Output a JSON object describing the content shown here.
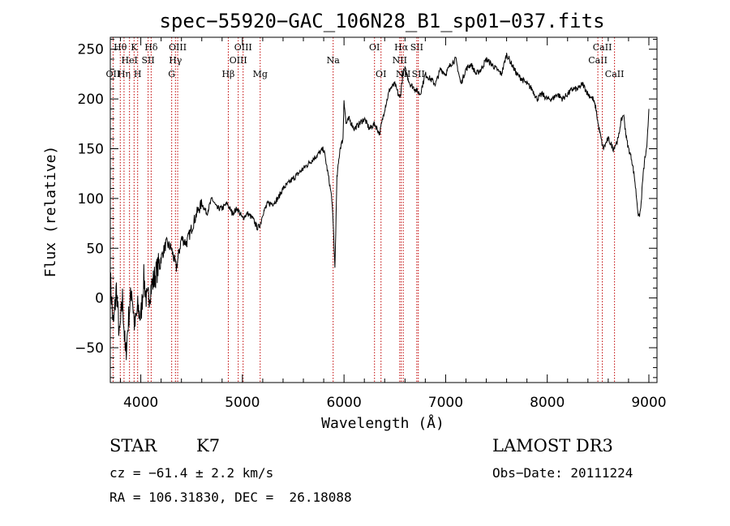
{
  "chart_data": {
    "type": "line",
    "title": "spec−55920−GAC_106N28_B1_sp01−037.fits",
    "xlabel": "Wavelength (Å)",
    "ylabel": "Flux (relative)",
    "xlim": [
      3700,
      9080
    ],
    "ylim": [
      -85,
      262
    ],
    "xticks": [
      4000,
      5000,
      6000,
      7000,
      8000,
      9000
    ],
    "yticks": [
      -50,
      0,
      50,
      100,
      150,
      200,
      250
    ],
    "grid": false,
    "series": [
      {
        "color": "#000000",
        "x": [
          3700,
          3730,
          3760,
          3790,
          3820,
          3850,
          3880,
          3910,
          3940,
          3970,
          4000,
          4030,
          4060,
          4100,
          4150,
          4200,
          4250,
          4300,
          4350,
          4400,
          4450,
          4500,
          4550,
          4600,
          4650,
          4700,
          4750,
          4800,
          4850,
          4900,
          4950,
          5000,
          5050,
          5100,
          5150,
          5180,
          5200,
          5250,
          5300,
          5350,
          5400,
          5450,
          5500,
          5550,
          5600,
          5650,
          5700,
          5750,
          5800,
          5850,
          5880,
          5895,
          5910,
          5930,
          5960,
          5990,
          6000,
          6020,
          6050,
          6100,
          6150,
          6200,
          6250,
          6300,
          6350,
          6400,
          6450,
          6500,
          6550,
          6580,
          6600,
          6650,
          6700,
          6750,
          6800,
          6850,
          6900,
          6950,
          7000,
          7050,
          7100,
          7150,
          7200,
          7250,
          7300,
          7350,
          7400,
          7450,
          7500,
          7550,
          7600,
          7650,
          7700,
          7750,
          7800,
          7850,
          7900,
          7950,
          8000,
          8050,
          8100,
          8150,
          8200,
          8250,
          8300,
          8350,
          8400,
          8450,
          8480,
          8500,
          8550,
          8600,
          8650,
          8700,
          8720,
          8750,
          8780,
          8800,
          8830,
          8860,
          8880,
          8900,
          8920,
          8940,
          8960,
          8980,
          9000
        ],
        "y": [
          20,
          -30,
          10,
          -40,
          0,
          -60,
          -20,
          10,
          -30,
          -10,
          -20,
          20,
          -5,
          10,
          25,
          40,
          55,
          50,
          30,
          60,
          55,
          70,
          85,
          95,
          85,
          100,
          90,
          90,
          95,
          85,
          90,
          80,
          85,
          80,
          70,
          75,
          85,
          95,
          95,
          100,
          110,
          115,
          120,
          125,
          130,
          135,
          140,
          145,
          150,
          120,
          100,
          70,
          30,
          120,
          150,
          160,
          200,
          175,
          180,
          170,
          175,
          180,
          170,
          175,
          165,
          190,
          210,
          215,
          200,
          225,
          230,
          215,
          210,
          205,
          225,
          220,
          215,
          230,
          225,
          235,
          240,
          215,
          230,
          235,
          225,
          230,
          240,
          235,
          230,
          225,
          245,
          235,
          225,
          220,
          215,
          210,
          200,
          205,
          200,
          200,
          205,
          200,
          205,
          210,
          210,
          215,
          205,
          200,
          190,
          175,
          150,
          160,
          150,
          160,
          175,
          185,
          160,
          150,
          140,
          120,
          100,
          80,
          90,
          120,
          140,
          150,
          190
        ]
      }
    ],
    "lines": [
      {
        "x": 3727,
        "labels": [
          "OII"
        ],
        "row": 3
      },
      {
        "x": 3798,
        "labels": [
          "Hθ"
        ],
        "row": 1
      },
      {
        "x": 3835,
        "labels": [
          "Hη"
        ],
        "row": 3
      },
      {
        "x": 3889,
        "labels": [
          "HeI"
        ],
        "row": 2
      },
      {
        "x": 3934,
        "labels": [
          "K"
        ],
        "row": 1
      },
      {
        "x": 3969,
        "labels": [
          "H"
        ],
        "row": 3
      },
      {
        "x": 4072,
        "labels": [
          "SII"
        ],
        "row": 2
      },
      {
        "x": 4102,
        "labels": [
          "Hδ"
        ],
        "row": 1
      },
      {
        "x": 4304,
        "labels": [
          "G"
        ],
        "row": 3
      },
      {
        "x": 4341,
        "labels": [
          "Hγ"
        ],
        "row": 2
      },
      {
        "x": 4363,
        "labels": [
          "OIII"
        ],
        "row": 1
      },
      {
        "x": 4861,
        "labels": [
          "Hβ"
        ],
        "row": 3
      },
      {
        "x": 4959,
        "labels": [
          "OIII"
        ],
        "row": 2
      },
      {
        "x": 5007,
        "labels": [
          "OIII"
        ],
        "row": 1
      },
      {
        "x": 5175,
        "labels": [
          "Mg"
        ],
        "row": 3
      },
      {
        "x": 5893,
        "labels": [
          "Na"
        ],
        "row": 2
      },
      {
        "x": 6300,
        "labels": [
          "OI"
        ],
        "row": 1
      },
      {
        "x": 6364,
        "labels": [
          "OI"
        ],
        "row": 3
      },
      {
        "x": 6548,
        "labels": [
          "NII"
        ],
        "row": 2
      },
      {
        "x": 6563,
        "labels": [
          "Hα"
        ],
        "row": 1
      },
      {
        "x": 6583,
        "labels": [
          "NII"
        ],
        "row": 3
      },
      {
        "x": 6716,
        "labels": [
          "SII"
        ],
        "row": 1
      },
      {
        "x": 6731,
        "labels": [
          "SII"
        ],
        "row": 3
      },
      {
        "x": 8498,
        "labels": [
          "CaII"
        ],
        "row": 2
      },
      {
        "x": 8542,
        "labels": [
          "CaII"
        ],
        "row": 1
      },
      {
        "x": 8662,
        "labels": [
          "CaII"
        ],
        "row": 3
      }
    ]
  },
  "info": {
    "class": "STAR",
    "subclass": "K7",
    "survey": "LAMOST DR3",
    "cz": "cz = −61.4 ± 2.2 km/s",
    "obs_date": "Obs−Date: 20111224",
    "radec": "RA = 106.31830, DEC =  26.18088"
  }
}
